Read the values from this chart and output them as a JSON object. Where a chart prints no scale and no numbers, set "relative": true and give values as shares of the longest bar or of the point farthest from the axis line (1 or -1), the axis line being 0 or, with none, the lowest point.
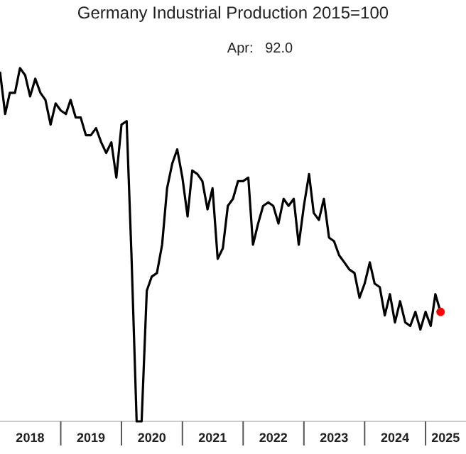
{
  "chart_data": {
    "type": "line",
    "title": "Germany Industrial Production 2015=100",
    "annotations": [
      "Apr:   92.0"
    ],
    "relative": true,
    "xlim": [
      "2018-01",
      "2025-09"
    ],
    "xticks": [
      {
        "value": "2018-07",
        "label": "2018"
      },
      {
        "value": "2019-07",
        "label": "2019"
      },
      {
        "value": "2020-07",
        "label": "2020"
      },
      {
        "value": "2021-07",
        "label": "2021"
      },
      {
        "value": "2022-07",
        "label": "2022"
      },
      {
        "value": "2023-07",
        "label": "2023"
      },
      {
        "value": "2024-07",
        "label": "2024"
      },
      {
        "value": "2025-05",
        "label": "2025"
      }
    ],
    "series": [
      {
        "color": "#000000",
        "x": [
          "2018-01",
          "2018-02",
          "2018-03",
          "2018-04",
          "2018-05",
          "2018-06",
          "2018-07",
          "2018-08",
          "2018-09",
          "2018-10",
          "2018-11",
          "2018-12",
          "2019-01",
          "2019-02",
          "2019-03",
          "2019-04",
          "2019-05",
          "2019-06",
          "2019-07",
          "2019-08",
          "2019-09",
          "2019-10",
          "2019-11",
          "2019-12",
          "2020-01",
          "2020-02",
          "2020-03",
          "2020-04",
          "2020-05",
          "2020-06",
          "2020-07",
          "2020-08",
          "2020-09",
          "2020-10",
          "2020-11",
          "2020-12",
          "2021-01",
          "2021-02",
          "2021-03",
          "2021-04",
          "2021-05",
          "2021-06",
          "2021-07",
          "2021-08",
          "2021-09",
          "2021-10",
          "2021-11",
          "2021-12",
          "2022-01",
          "2022-02",
          "2022-03",
          "2022-04",
          "2022-05",
          "2022-06",
          "2022-07",
          "2022-08",
          "2022-09",
          "2022-10",
          "2022-11",
          "2022-12",
          "2023-01",
          "2023-02",
          "2023-03",
          "2023-04",
          "2023-05",
          "2023-06",
          "2023-07",
          "2023-08",
          "2023-09",
          "2023-10",
          "2023-11",
          "2023-12",
          "2024-01",
          "2024-02",
          "2024-03",
          "2024-04",
          "2024-05",
          "2024-06",
          "2024-07",
          "2024-08",
          "2024-09",
          "2024-10",
          "2024-11",
          "2024-12",
          "2025-01",
          "2025-02",
          "2025-03",
          "2025-04"
        ],
        "values": [
          0.99,
          0.87,
          0.93,
          0.93,
          1,
          0.98,
          0.92,
          0.97,
          0.93,
          0.91,
          0.84,
          0.9,
          0.88,
          0.87,
          0.91,
          0.86,
          0.86,
          0.81,
          0.81,
          0.83,
          0.79,
          0.76,
          0.79,
          0.69,
          0.84,
          0.85,
          0.47,
          0,
          0,
          0.37,
          0.41,
          0.42,
          0.5,
          0.66,
          0.73,
          0.77,
          0.69,
          0.58,
          0.71,
          0.7,
          0.68,
          0.6,
          0.66,
          0.46,
          0.49,
          0.61,
          0.63,
          0.68,
          0.68,
          0.69,
          0.5,
          0.56,
          0.61,
          0.62,
          0.61,
          0.56,
          0.63,
          0.61,
          0.63,
          0.5,
          0.61,
          0.7,
          0.59,
          0.57,
          0.63,
          0.52,
          0.51,
          0.47,
          0.45,
          0.43,
          0.42,
          0.35,
          0.39,
          0.45,
          0.39,
          0.38,
          0.3,
          0.36,
          0.28,
          0.34,
          0.28,
          0.27,
          0.31,
          0.26,
          0.31,
          0.27,
          0.36,
          0.31
        ]
      },
      {
        "type": "scatter",
        "color": "#ff0000",
        "x": [
          "2025-04"
        ],
        "values": [
          0.31
        ]
      }
    ]
  }
}
